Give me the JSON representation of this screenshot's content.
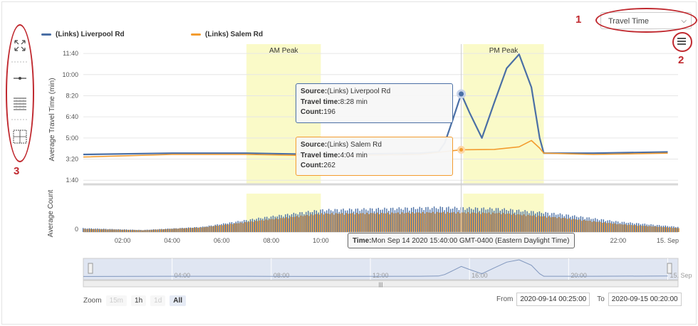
{
  "toolbar": {
    "dropdown_value": "Travel Time",
    "callouts": [
      "1",
      "2",
      "3"
    ]
  },
  "legend": [
    {
      "name": "(Links) Liverpool Rd",
      "color": "#4a6fa5"
    },
    {
      "name": "(Links) Salem Rd",
      "color": "#f39c2f"
    }
  ],
  "chart_data": {
    "type": "line",
    "y_axis_label": "Average Travel Time (min)",
    "count_axis_label": "Average Count",
    "y_ticks": [
      "1:40",
      "3:20",
      "5:00",
      "6:40",
      "8:20",
      "10:00",
      "11:40"
    ],
    "count_ticks": [
      "0"
    ],
    "x_ticks": [
      "02:00",
      "04:00",
      "06:00",
      "08:00",
      "10:00",
      "22:00",
      "15. Sep"
    ],
    "bands": [
      {
        "label": "AM Peak",
        "from": "07:00",
        "to": "10:00"
      },
      {
        "label": "PM Peak",
        "from": "15:45",
        "to": "19:00"
      }
    ],
    "series": [
      {
        "name": "(Links) Liverpool Rd",
        "color": "#4a6fa5",
        "x": [
          "00:25",
          "04:00",
          "07:00",
          "10:00",
          "14:00",
          "14:45",
          "15:00",
          "15:20",
          "15:40",
          "16:00",
          "16:30",
          "17:00",
          "17:30",
          "18:00",
          "18:30",
          "18:50",
          "19:00",
          "21:00",
          "24:00"
        ],
        "y": [
          3.7,
          3.8,
          3.8,
          3.7,
          3.8,
          3.9,
          4.6,
          6.5,
          8.47,
          7.0,
          5.0,
          7.8,
          10.5,
          11.6,
          9.0,
          5.0,
          3.8,
          3.8,
          3.9
        ]
      },
      {
        "name": "(Links) Salem Rd",
        "color": "#f39c2f",
        "x": [
          "00:25",
          "04:00",
          "07:00",
          "10:00",
          "14:00",
          "15:40",
          "17:00",
          "18:00",
          "18:30",
          "18:50",
          "19:00",
          "21:00",
          "24:00"
        ],
        "y": [
          3.5,
          3.7,
          3.7,
          3.6,
          3.7,
          4.07,
          4.1,
          4.3,
          4.8,
          4.2,
          3.8,
          3.7,
          3.8
        ]
      }
    ],
    "count_series": [
      {
        "name": "(Links) Liverpool Rd",
        "color": "#4a6fa5",
        "levels": [
          0.15,
          0.08,
          0.2,
          0.55,
          0.85,
          0.9,
          0.95,
          0.9,
          0.7,
          0.4,
          0.2
        ]
      },
      {
        "name": "(Links) Salem Rd",
        "color": "#f39c2f",
        "levels": [
          0.12,
          0.07,
          0.18,
          0.45,
          0.7,
          0.72,
          0.75,
          0.72,
          0.55,
          0.3,
          0.15
        ]
      }
    ],
    "navigator_ticks": [
      "04:00",
      "08:00",
      "12:00",
      "16:00",
      "20:00",
      "15. Sep"
    ]
  },
  "tooltips": {
    "liverpool": {
      "source_label": "Source:",
      "source": "(Links) Liverpool Rd",
      "tt_label": "Travel time:",
      "tt": "8:28 min",
      "count_label": "Count:",
      "count": "196"
    },
    "salem": {
      "source_label": "Source:",
      "source": "(Links) Salem Rd",
      "tt_label": "Travel time:",
      "tt": "4:04 min",
      "count_label": "Count:",
      "count": "262"
    },
    "time": {
      "label": "Time:",
      "value": "Mon Sep 14 2020 15:40:00 GMT-0400 (Eastern Daylight Time)"
    }
  },
  "zoom": {
    "label": "Zoom",
    "buttons": [
      "15m",
      "1h",
      "1d",
      "All"
    ],
    "selected": "All"
  },
  "range": {
    "from_label": "From",
    "from": "2020-09-14 00:25:00",
    "to_label": "To",
    "to": "2020-09-15 00:20:00"
  }
}
